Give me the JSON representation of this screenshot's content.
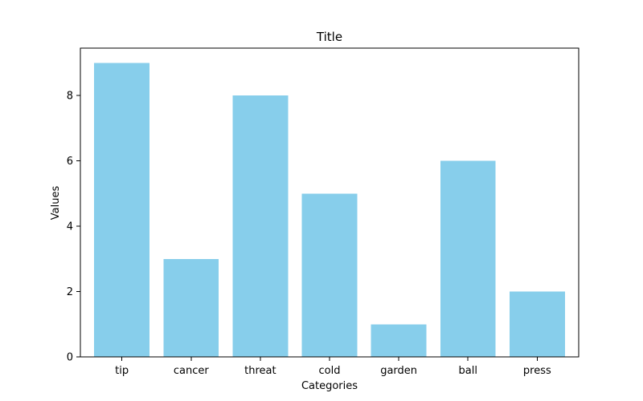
{
  "chart_data": {
    "type": "bar",
    "title": "Title",
    "xlabel": "Categories",
    "ylabel": "Values",
    "categories": [
      "tip",
      "cancer",
      "threat",
      "cold",
      "garden",
      "ball",
      "press"
    ],
    "values": [
      9,
      3,
      8,
      5,
      1,
      6,
      2
    ],
    "ylim": [
      0,
      9.45
    ],
    "yticks": [
      0,
      2,
      4,
      6,
      8
    ],
    "bar_color": "#87ceeb",
    "grid": false,
    "legend": "none"
  }
}
